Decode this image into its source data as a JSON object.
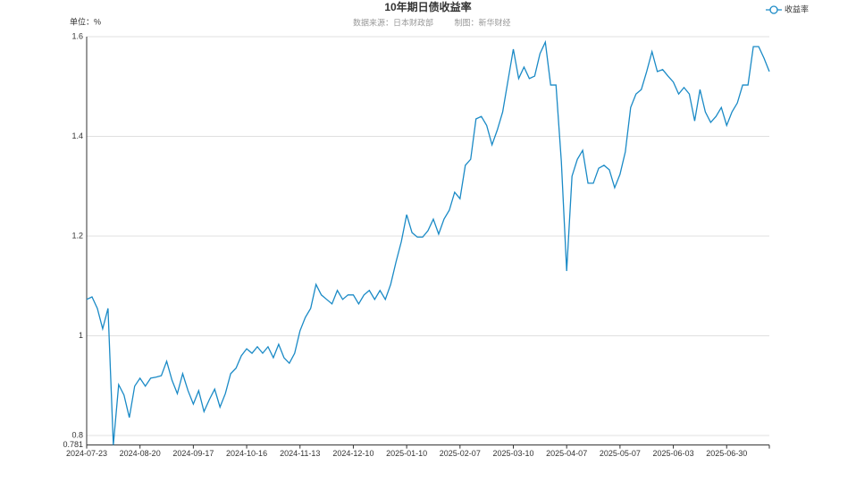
{
  "chart_data": {
    "type": "line",
    "title": "10年期日债收益率",
    "source": "数据来源：日本财政部",
    "credit": "制图：新华财经",
    "unit_label": "单位：%",
    "categories": [
      "2024-07-23",
      null,
      null,
      null,
      null,
      null,
      null,
      null,
      null,
      null,
      "2024-08-20",
      null,
      null,
      null,
      null,
      null,
      null,
      null,
      null,
      null,
      "2024-09-17",
      null,
      null,
      null,
      null,
      null,
      null,
      null,
      null,
      null,
      "2024-10-16",
      null,
      null,
      null,
      null,
      null,
      null,
      null,
      null,
      null,
      "2024-11-13",
      null,
      null,
      null,
      null,
      null,
      null,
      null,
      null,
      null,
      "2024-12-10",
      null,
      null,
      null,
      null,
      null,
      null,
      null,
      null,
      null,
      "2025-01-10",
      null,
      null,
      null,
      null,
      null,
      null,
      null,
      null,
      null,
      "2025-02-07",
      null,
      null,
      null,
      null,
      null,
      null,
      null,
      null,
      null,
      "2025-03-10",
      null,
      null,
      null,
      null,
      null,
      null,
      null,
      null,
      null,
      "2025-04-07",
      null,
      null,
      null,
      null,
      null,
      null,
      null,
      null,
      null,
      "2025-05-07",
      null,
      null,
      null,
      null,
      null,
      null,
      null,
      null,
      null,
      "2025-06-03",
      null,
      null,
      null,
      null,
      null,
      null,
      null,
      null,
      null,
      "2025-06-30",
      null,
      null,
      null,
      null,
      null,
      null,
      null,
      null
    ],
    "series": [
      {
        "name": "收益率",
        "color": "#1a8ac6",
        "values": [
          1.073,
          1.078,
          1.055,
          1.014,
          1.055,
          0.781,
          0.902,
          0.881,
          0.836,
          0.899,
          0.915,
          0.899,
          0.915,
          0.917,
          0.92,
          0.949,
          0.911,
          0.884,
          0.924,
          0.89,
          0.863,
          0.89,
          0.848,
          0.872,
          0.893,
          0.857,
          0.884,
          0.924,
          0.935,
          0.96,
          0.974,
          0.965,
          0.978,
          0.965,
          0.978,
          0.956,
          0.983,
          0.956,
          0.945,
          0.965,
          1.01,
          1.037,
          1.055,
          1.103,
          1.082,
          1.073,
          1.064,
          1.091,
          1.073,
          1.082,
          1.082,
          1.064,
          1.082,
          1.091,
          1.073,
          1.091,
          1.073,
          1.103,
          1.148,
          1.189,
          1.243,
          1.207,
          1.198,
          1.198,
          1.211,
          1.234,
          1.204,
          1.234,
          1.252,
          1.288,
          1.275,
          1.342,
          1.354,
          1.435,
          1.44,
          1.422,
          1.383,
          1.413,
          1.449,
          1.512,
          1.575,
          1.516,
          1.539,
          1.516,
          1.521,
          1.566,
          1.589,
          1.503,
          1.503,
          1.35,
          1.13,
          1.32,
          1.354,
          1.372,
          1.306,
          1.306,
          1.336,
          1.342,
          1.333,
          1.297,
          1.324,
          1.369,
          1.458,
          1.485,
          1.494,
          1.53,
          1.57,
          1.53,
          1.534,
          1.521,
          1.509,
          1.485,
          1.498,
          1.485,
          1.431,
          1.494,
          1.449,
          1.428,
          1.44,
          1.458,
          1.422,
          1.449,
          1.467,
          1.503,
          1.503,
          1.58,
          1.58,
          1.557,
          1.53
        ]
      }
    ],
    "ylim": [
      0.781,
      1.6
    ],
    "yticks": [
      0.781,
      0.8,
      1,
      1.2,
      1.4,
      1.6
    ],
    "grid": true,
    "legend": "top-right"
  }
}
